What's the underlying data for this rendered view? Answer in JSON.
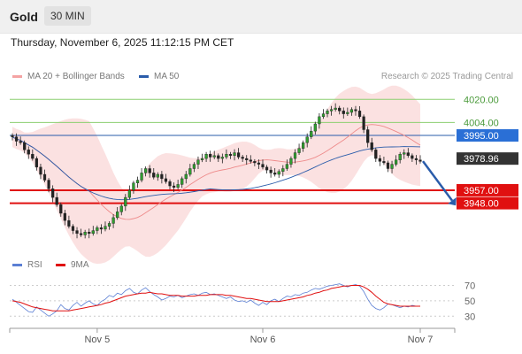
{
  "header": {
    "instrument": "Gold",
    "timeframe": "30 MIN"
  },
  "datetime": "Thursday, November 6, 2025 11:12:15 PM CET",
  "legend": {
    "bollinger": {
      "label": "MA 20 + Bollinger Bands",
      "color": "#f4a3a3"
    },
    "ma50": {
      "label": "MA 50",
      "color": "#2a5caa"
    },
    "rsi": {
      "label": "RSI",
      "color": "#5b7fd4"
    },
    "rsi_ma": {
      "label": "9MA",
      "color": "#e01010"
    }
  },
  "credit": "Research © 2025 Trading Central",
  "chart_data": [
    {
      "type": "candlestick",
      "title": "",
      "x_tick_labels": [
        "Nov 5",
        "Nov 6",
        "Nov 7"
      ],
      "ylim": [
        3914,
        4030
      ],
      "levels": [
        {
          "value": 4020.0,
          "label": "4020.00",
          "style": "green-line"
        },
        {
          "value": 4004.0,
          "label": "4004.00",
          "style": "green-line"
        },
        {
          "value": 3995.0,
          "label": "3995.00",
          "style": "blue-label"
        },
        {
          "value": 3978.96,
          "label": "3978.96",
          "style": "current-price"
        },
        {
          "value": 3957.0,
          "label": "3957.00",
          "style": "red-label"
        },
        {
          "value": 3948.0,
          "label": "3948.00",
          "style": "red-label"
        }
      ],
      "close": [
        3994,
        3991,
        3990,
        3985,
        3982,
        3979,
        3973,
        3968,
        3964,
        3958,
        3952,
        3947,
        3941,
        3936,
        3932,
        3929,
        3927,
        3926,
        3928,
        3927,
        3929,
        3931,
        3930,
        3932,
        3934,
        3938,
        3942,
        3946,
        3952,
        3957,
        3962,
        3964,
        3969,
        3972,
        3969,
        3966,
        3968,
        3965,
        3963,
        3960,
        3959,
        3961,
        3965,
        3968,
        3972,
        3975,
        3978,
        3979,
        3982,
        3980,
        3981,
        3979,
        3980,
        3982,
        3981,
        3983,
        3980,
        3979,
        3978,
        3977,
        3976,
        3975,
        3973,
        3971,
        3969,
        3968,
        3970,
        3972,
        3975,
        3979,
        3983,
        3986,
        3990,
        3994,
        3998,
        4003,
        4008,
        4010,
        4012,
        4013,
        4014,
        4012,
        4010,
        4011,
        4013,
        4012,
        4008,
        3999,
        3990,
        3985,
        3979,
        3977,
        3976,
        3972,
        3975,
        3978,
        3982,
        3983,
        3981,
        3979,
        3978,
        3977
      ],
      "arrow": {
        "from_value": 3978.96,
        "to_value": 3948.0
      }
    },
    {
      "type": "line",
      "title": "",
      "y_tick_labels": [
        "70",
        "50",
        "30"
      ],
      "ylim": [
        20,
        82
      ],
      "series": [
        {
          "name": "RSI",
          "values": [
            52,
            48,
            44,
            40,
            36,
            35,
            42,
            38,
            34,
            30,
            33,
            37,
            45,
            40,
            38,
            44,
            48,
            43,
            47,
            50,
            46,
            44,
            49,
            52,
            57,
            55,
            60,
            58,
            63,
            66,
            61,
            59,
            64,
            67,
            62,
            58,
            55,
            51,
            53,
            56,
            55,
            57,
            54,
            56,
            58,
            59,
            57,
            60,
            61,
            58,
            59,
            57,
            55,
            53,
            55,
            51,
            49,
            50,
            48,
            51,
            47,
            44,
            48,
            45,
            50,
            52,
            49,
            53,
            56,
            55,
            58,
            57,
            60,
            61,
            64,
            66,
            65,
            67,
            69,
            70,
            71,
            72,
            70,
            68,
            70,
            71,
            69,
            62,
            52,
            44,
            40,
            38,
            41,
            46,
            45,
            43,
            41,
            43,
            42,
            44,
            43,
            43
          ]
        },
        {
          "name": "9MA",
          "values": [
            50,
            49,
            48,
            46,
            44,
            42,
            41,
            40,
            39,
            38,
            37,
            37,
            37,
            37,
            37,
            38,
            39,
            40,
            41,
            42,
            43,
            44,
            45,
            47,
            48,
            50,
            52,
            54,
            56,
            57,
            58,
            59,
            60,
            60,
            61,
            60,
            59,
            59,
            58,
            57,
            57,
            57,
            56,
            56,
            56,
            56,
            57,
            57,
            57,
            58,
            58,
            58,
            58,
            57,
            57,
            56,
            55,
            54,
            53,
            53,
            52,
            51,
            50,
            49,
            49,
            49,
            49,
            50,
            51,
            52,
            53,
            54,
            55,
            57,
            58,
            60,
            61,
            63,
            64,
            66,
            67,
            68,
            69,
            69,
            70,
            70,
            70,
            68,
            65,
            61,
            56,
            52,
            48,
            46,
            45,
            44,
            43,
            43,
            43,
            43,
            43,
            43
          ]
        }
      ]
    }
  ]
}
